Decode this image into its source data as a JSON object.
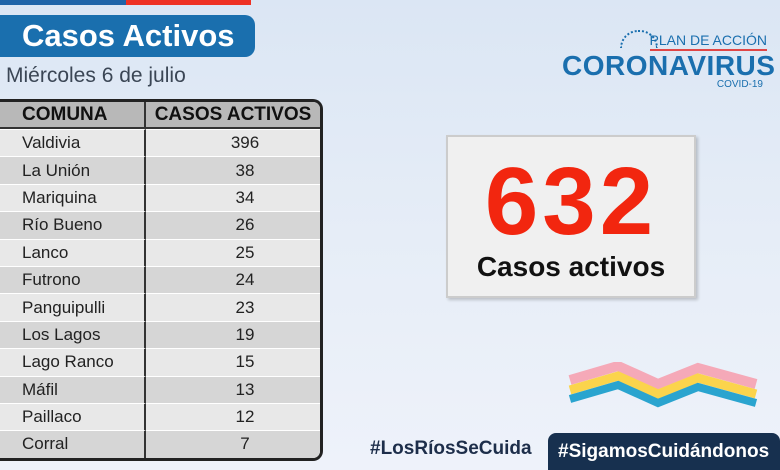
{
  "header": {
    "title": "Casos Activos",
    "date": "Miércoles 6  de julio"
  },
  "table": {
    "headers": [
      "COMUNA",
      "CASOS ACTIVOS"
    ],
    "rows": [
      [
        "Valdivia",
        "396"
      ],
      [
        "La Unión",
        "38"
      ],
      [
        "Mariquina",
        "34"
      ],
      [
        "Río Bueno",
        "26"
      ],
      [
        "Lanco",
        "25"
      ],
      [
        "Futrono",
        "24"
      ],
      [
        "Panguipulli",
        "23"
      ],
      [
        "Los Lagos",
        "19"
      ],
      [
        "Lago Ranco",
        "15"
      ],
      [
        "Máfil",
        "13"
      ],
      [
        "Paillaco",
        "12"
      ],
      [
        "Corral",
        "7"
      ]
    ]
  },
  "logo": {
    "plan": "PLAN DE ACCIÓN",
    "name": "CORONAVIRUS",
    "sub": "COVID-19"
  },
  "summary": {
    "total": "632",
    "label": "Casos activos"
  },
  "hashtags": {
    "left": "#LosRíosSeCuida",
    "right": "#SigamosCuidándonos"
  }
}
